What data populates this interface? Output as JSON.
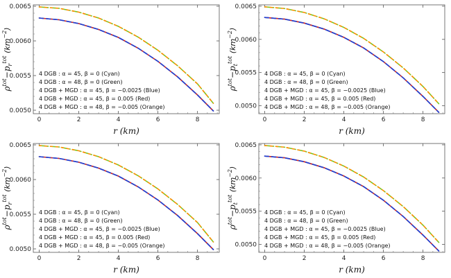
{
  "colors": {
    "cyan": "#00bcd4",
    "green": "#7cc41f",
    "blue": "#1f3fd8",
    "red": "#e0241f",
    "orange": "#ff8c00"
  },
  "chart_data": [
    {
      "panel": "top-left",
      "type": "line",
      "xlabel": "r (km)",
      "ylabel": "ρ^tot − p_r^tot (km^−2)",
      "ylabel_parts": {
        "base": "ρ",
        "base_sup": "tot",
        "minus": "−",
        "p": "p",
        "p_sub": "r",
        "p_sup": "tot",
        "unit": "(km",
        "unit_exp": "−2",
        "unit_close": ")"
      },
      "xlim": [
        -0.3,
        9.1
      ],
      "ylim": [
        0.00495,
        0.00652
      ],
      "xticks": [
        0,
        2,
        4,
        6,
        8
      ],
      "yticks": [
        0.005,
        0.0055,
        0.006,
        0.0065
      ],
      "xtick_labels": [
        "0",
        "2",
        "4",
        "6",
        "8"
      ],
      "ytick_labels": [
        "0.0050",
        "0.0055",
        "0.0060",
        "0.0065"
      ],
      "legend_position": "bottom-left",
      "legend": [
        "4 DGB : α = 45,  β = 0 (Cyan)",
        "4 DGB : α = 48,  β = 0 (Green)",
        "4 DGB + MGD : α = 45,  β = −0.0025 (Blue)",
        "4 DGB + MGD : α = 45,  β = 0.005 (Red)",
        "4 DGB + MGD : α = 48,  β = −0.005 (Orange)"
      ],
      "series": [
        {
          "name": "4 DGB : α = 48,  β = 0 (Green)",
          "color": "green",
          "dash": "8,3,2,3",
          "x": [
            0,
            1,
            2,
            3,
            4,
            5,
            6,
            7,
            8,
            8.8
          ],
          "y": [
            0.00649,
            0.00647,
            0.006415,
            0.00633,
            0.00621,
            0.006055,
            0.005865,
            0.00564,
            0.00538,
            0.0051
          ]
        },
        {
          "name": "4 DGB + MGD : α = 48,  β = −0.005 (Orange)",
          "color": "orange",
          "dash": "3,5",
          "x": [
            0,
            1,
            2,
            3,
            4,
            5,
            6,
            7,
            8,
            8.8
          ],
          "y": [
            0.00649,
            0.00647,
            0.006415,
            0.00633,
            0.00621,
            0.006055,
            0.005865,
            0.00564,
            0.00538,
            0.0051
          ]
        },
        {
          "name": "4 DGB : α = 45,  β = 0 (Cyan)",
          "color": "cyan",
          "dash": "",
          "x": [
            0,
            1,
            2,
            3,
            4,
            5,
            6,
            7,
            8,
            8.8
          ],
          "y": [
            0.00633,
            0.006305,
            0.00625,
            0.006165,
            0.00605,
            0.005895,
            0.005705,
            0.00548,
            0.00522,
            0.00499
          ]
        },
        {
          "name": "4 DGB + MGD : α = 45,  β = 0.005 (Red)",
          "color": "red",
          "dash": "",
          "x": [
            0,
            1,
            2,
            3,
            4,
            5,
            6,
            7,
            8,
            8.8
          ],
          "y": [
            0.00633,
            0.006305,
            0.00625,
            0.006165,
            0.00605,
            0.005895,
            0.005705,
            0.00548,
            0.00522,
            0.00499
          ]
        },
        {
          "name": "4 DGB + MGD : α = 45,  β = −0.0025 (Blue)",
          "color": "blue",
          "dash": "6,4",
          "x": [
            0,
            1,
            2,
            3,
            4,
            5,
            6,
            7,
            8,
            8.8
          ],
          "y": [
            0.00633,
            0.006305,
            0.00625,
            0.006165,
            0.00605,
            0.005895,
            0.005705,
            0.00548,
            0.00522,
            0.00499
          ]
        }
      ]
    },
    {
      "panel": "top-right",
      "type": "line",
      "xlabel": "r (km)",
      "ylabel": "ρ^tot − p_t^tot (km^−2)",
      "ylabel_parts": {
        "base": "ρ",
        "base_sup": "tot",
        "minus": "−",
        "p": "p",
        "p_sub": "t",
        "p_sup": "tot",
        "unit": "(km",
        "unit_exp": "−2",
        "unit_close": ")"
      },
      "xlim": [
        -0.3,
        9.1
      ],
      "ylim": [
        0.00488,
        0.00652
      ],
      "xticks": [
        0,
        2,
        4,
        6,
        8
      ],
      "yticks": [
        0.005,
        0.0055,
        0.006,
        0.0065
      ],
      "xtick_labels": [
        "0",
        "2",
        "4",
        "6",
        "8"
      ],
      "ytick_labels": [
        "0.0050",
        "0.0055",
        "0.0060",
        "0.0065"
      ],
      "legend_position": "bottom-left",
      "legend": [
        "4 DGB : α = 45,  β = 0 (Cyan)",
        "4 DGB : α = 48,  β = 0 (Green)",
        "4 DGB + MGD : α = 45,  β = −0.0025 (Blue)",
        "4 DGB + MGD : α = 45,  β = 0.005 (Red)",
        "4 DGB + MGD : α = 48,  β = −0.005 (Orange)"
      ],
      "series": [
        {
          "name": "4 DGB : α = 48,  β = 0 (Green)",
          "color": "green",
          "dash": "8,3,2,3",
          "x": [
            0,
            1,
            2,
            3,
            4,
            5,
            6,
            7,
            8,
            8.8
          ],
          "y": [
            0.00649,
            0.006465,
            0.006405,
            0.00631,
            0.00618,
            0.006015,
            0.00581,
            0.00557,
            0.00529,
            0.00503
          ]
        },
        {
          "name": "4 DGB + MGD : α = 48,  β = −0.005 (Orange)",
          "color": "orange",
          "dash": "3,5",
          "x": [
            0,
            1,
            2,
            3,
            4,
            5,
            6,
            7,
            8,
            8.8
          ],
          "y": [
            0.00649,
            0.006465,
            0.006405,
            0.00631,
            0.00618,
            0.006015,
            0.00581,
            0.00557,
            0.00529,
            0.00503
          ]
        },
        {
          "name": "4 DGB : α = 45,  β = 0 (Cyan)",
          "color": "cyan",
          "dash": "",
          "x": [
            0,
            1,
            2,
            3,
            4,
            5,
            6,
            7,
            8,
            8.8
          ],
          "y": [
            0.00633,
            0.006305,
            0.006245,
            0.006155,
            0.00603,
            0.00587,
            0.005665,
            0.00542,
            0.00514,
            0.0049
          ]
        },
        {
          "name": "4 DGB + MGD : α = 45,  β = 0.005 (Red)",
          "color": "red",
          "dash": "",
          "x": [
            0,
            1,
            2,
            3,
            4,
            5,
            6,
            7,
            8,
            8.8
          ],
          "y": [
            0.00633,
            0.006305,
            0.006245,
            0.006155,
            0.00603,
            0.00587,
            0.005665,
            0.00542,
            0.00514,
            0.0049
          ]
        },
        {
          "name": "4 DGB + MGD : α = 45,  β = −0.0025 (Blue)",
          "color": "blue",
          "dash": "6,4",
          "x": [
            0,
            1,
            2,
            3,
            4,
            5,
            6,
            7,
            8,
            8.8
          ],
          "y": [
            0.00633,
            0.006305,
            0.006245,
            0.006155,
            0.00603,
            0.00587,
            0.005665,
            0.00542,
            0.00514,
            0.0049
          ]
        }
      ]
    },
    {
      "panel": "bottom-left",
      "type": "line",
      "xlabel": "r (km)",
      "ylabel": "ρ^tot − p_r^tot (km^−2)",
      "ylabel_parts": {
        "base": "ρ",
        "base_sup": "tot",
        "minus": "−",
        "p": "p",
        "p_sub": "r",
        "p_sup": "tot",
        "unit": "(km",
        "unit_exp": "−2",
        "unit_close": ")"
      },
      "xlim": [
        -0.3,
        9.1
      ],
      "ylim": [
        0.00495,
        0.00652
      ],
      "xticks": [
        0,
        2,
        4,
        6,
        8
      ],
      "yticks": [
        0.005,
        0.0055,
        0.006,
        0.0065
      ],
      "xtick_labels": [
        "0",
        "2",
        "4",
        "6",
        "8"
      ],
      "ytick_labels": [
        "0.0050",
        "0.0055",
        "0.0060",
        "0.0065"
      ],
      "legend_position": "bottom-left",
      "legend": [
        "4 DGB : α = 45,  β = 0 (Cyan)",
        "4 DGB : α = 48,  β = 0 (Green)",
        "4 DGB + MGD : α = 45,  β = −0.0025 (Blue)",
        "4 DGB + MGD : α = 45,  β = 0.005 (Red)",
        "4 DGB + MGD : α = 48,  β = −0.005 (Orange)"
      ],
      "series": [
        {
          "name": "4 DGB : α = 48,  β = 0 (Green)",
          "color": "green",
          "dash": "8,3,2,3",
          "x": [
            0,
            1,
            2,
            3,
            4,
            5,
            6,
            7,
            8,
            8.8
          ],
          "y": [
            0.00649,
            0.00647,
            0.006415,
            0.00633,
            0.00621,
            0.006055,
            0.005865,
            0.00564,
            0.00538,
            0.0051
          ]
        },
        {
          "name": "4 DGB + MGD : α = 48,  β = −0.005 (Orange)",
          "color": "orange",
          "dash": "3,5",
          "x": [
            0,
            1,
            2,
            3,
            4,
            5,
            6,
            7,
            8,
            8.8
          ],
          "y": [
            0.00649,
            0.00647,
            0.006415,
            0.00633,
            0.00621,
            0.006055,
            0.005865,
            0.00564,
            0.00538,
            0.0051
          ]
        },
        {
          "name": "4 DGB : α = 45,  β = 0 (Cyan)",
          "color": "cyan",
          "dash": "",
          "x": [
            0,
            1,
            2,
            3,
            4,
            5,
            6,
            7,
            8,
            8.8
          ],
          "y": [
            0.00633,
            0.006305,
            0.00625,
            0.006165,
            0.00605,
            0.005895,
            0.005705,
            0.00548,
            0.00522,
            0.00499
          ]
        },
        {
          "name": "4 DGB + MGD : α = 45,  β = 0.005 (Red)",
          "color": "red",
          "dash": "",
          "x": [
            0,
            1,
            2,
            3,
            4,
            5,
            6,
            7,
            8,
            8.8
          ],
          "y": [
            0.00633,
            0.006305,
            0.00625,
            0.006165,
            0.00605,
            0.005895,
            0.005705,
            0.00548,
            0.00522,
            0.00499
          ]
        },
        {
          "name": "4 DGB + MGD : α = 45,  β = −0.0025 (Blue)",
          "color": "blue",
          "dash": "6,4",
          "x": [
            0,
            1,
            2,
            3,
            4,
            5,
            6,
            7,
            8,
            8.8
          ],
          "y": [
            0.00633,
            0.006305,
            0.00625,
            0.006165,
            0.00605,
            0.005895,
            0.005705,
            0.00548,
            0.00522,
            0.00499
          ]
        }
      ]
    },
    {
      "panel": "bottom-right",
      "type": "line",
      "xlabel": "r (km)",
      "ylabel": "ρ^tot − p_t^tot (km^−2)",
      "ylabel_parts": {
        "base": "ρ",
        "base_sup": "tot",
        "minus": "−",
        "p": "p",
        "p_sub": "t",
        "p_sup": "tot",
        "unit": "(km",
        "unit_exp": "−2",
        "unit_close": ")"
      },
      "xlim": [
        -0.3,
        9.1
      ],
      "ylim": [
        0.00488,
        0.00652
      ],
      "xticks": [
        0,
        2,
        4,
        6,
        8
      ],
      "yticks": [
        0.005,
        0.0055,
        0.006,
        0.0065
      ],
      "xtick_labels": [
        "0",
        "2",
        "4",
        "6",
        "8"
      ],
      "ytick_labels": [
        "0.0050",
        "0.0055",
        "0.0060",
        "0.0065"
      ],
      "legend_position": "bottom-left",
      "legend": [
        "4 DGB : α = 45,  β = 0 (Cyan)",
        "4 DGB : α = 48,  β = 0 (Green)",
        "4 DGB + MGD : α = 45,  β = −0.0025 (Blue)",
        "4 DGB + MGD : α = 45,  β = 0.005 (Red)",
        "4 DGB + MGD : α = 48,  β = −0.005 (Orange)"
      ],
      "series": [
        {
          "name": "4 DGB : α = 48,  β = 0 (Green)",
          "color": "green",
          "dash": "8,3,2,3",
          "x": [
            0,
            1,
            2,
            3,
            4,
            5,
            6,
            7,
            8,
            8.8
          ],
          "y": [
            0.00649,
            0.006465,
            0.006405,
            0.00631,
            0.00618,
            0.006015,
            0.00581,
            0.00557,
            0.00529,
            0.00503
          ]
        },
        {
          "name": "4 DGB + MGD : α = 48,  β = −0.005 (Orange)",
          "color": "orange",
          "dash": "3,5",
          "x": [
            0,
            1,
            2,
            3,
            4,
            5,
            6,
            7,
            8,
            8.8
          ],
          "y": [
            0.00649,
            0.006465,
            0.006405,
            0.00631,
            0.00618,
            0.006015,
            0.00581,
            0.00557,
            0.00529,
            0.00503
          ]
        },
        {
          "name": "4 DGB : α = 45,  β = 0 (Cyan)",
          "color": "cyan",
          "dash": "",
          "x": [
            0,
            1,
            2,
            3,
            4,
            5,
            6,
            7,
            8,
            8.8
          ],
          "y": [
            0.00633,
            0.006305,
            0.006245,
            0.006155,
            0.00603,
            0.00587,
            0.005665,
            0.00542,
            0.00514,
            0.0049
          ]
        },
        {
          "name": "4 DGB + MGD : α = 45,  β = 0.005 (Red)",
          "color": "red",
          "dash": "",
          "x": [
            0,
            1,
            2,
            3,
            4,
            5,
            6,
            7,
            8,
            8.8
          ],
          "y": [
            0.00633,
            0.006305,
            0.006245,
            0.006155,
            0.00603,
            0.00587,
            0.005665,
            0.00542,
            0.00514,
            0.0049
          ]
        },
        {
          "name": "4 DGB + MGD : α = 45,  β = −0.0025 (Blue)",
          "color": "blue",
          "dash": "6,4",
          "x": [
            0,
            1,
            2,
            3,
            4,
            5,
            6,
            7,
            8,
            8.8
          ],
          "y": [
            0.00633,
            0.006305,
            0.006245,
            0.006155,
            0.00603,
            0.00587,
            0.005665,
            0.00542,
            0.00514,
            0.0049
          ]
        }
      ]
    }
  ]
}
